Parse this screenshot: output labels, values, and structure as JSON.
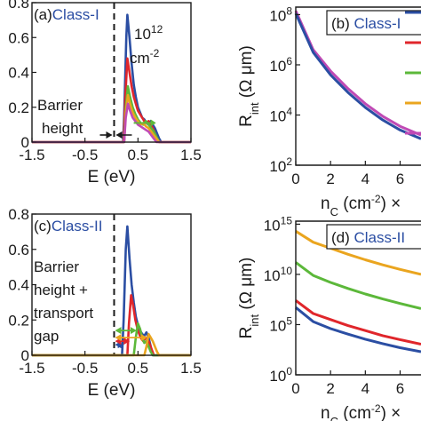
{
  "chart_data": [
    {
      "panel": "(a)",
      "class_label": "Class-I",
      "type": "line",
      "xlabel": "E (eV)",
      "ylabel": "",
      "xlim": [
        -1.5,
        1.5
      ],
      "ylim": [
        0,
        0.8
      ],
      "xticks": [
        "-1.5",
        "-0.5",
        "0.5",
        "1.5"
      ],
      "xtick_values": [
        -1.5,
        -0.5,
        0.5,
        1.5
      ],
      "yticks": [
        "0",
        "0.2",
        "0.4",
        "0.6",
        "0.8"
      ],
      "ytick_values": [
        0,
        0.2,
        0.4,
        0.6,
        0.8
      ],
      "annotation_density": "10",
      "annotation_density_exp": "12",
      "annotation_unit": "cm",
      "annotation_unit_exp": "-2",
      "barrier_line_x": 0.05,
      "barrier_label_line1": "Barrier",
      "barrier_label_line2": "height",
      "series": [
        {
          "color": "#2b4ea3",
          "x": [
            -1.5,
            0.22,
            0.24,
            0.28,
            0.3,
            0.34,
            0.38,
            0.42,
            0.46,
            0.5,
            0.54,
            0.58,
            0.62,
            0.66,
            0.7,
            0.74,
            0.78,
            0.82,
            0.86,
            0.9,
            0.94,
            1.5
          ],
          "y": [
            0,
            0,
            0.15,
            0.6,
            0.73,
            0.6,
            0.45,
            0.33,
            0.26,
            0.2,
            0.17,
            0.14,
            0.13,
            0.11,
            0.1,
            0.12,
            0.1,
            0.08,
            0.05,
            0.02,
            0,
            0
          ]
        },
        {
          "color": "#e0262b",
          "x": [
            -1.5,
            0.23,
            0.26,
            0.3,
            0.34,
            0.38,
            0.42,
            0.46,
            0.5,
            0.54,
            0.58,
            0.62,
            0.66,
            0.7,
            0.74,
            0.78,
            0.82,
            0.86,
            0.9,
            1.5
          ],
          "y": [
            0,
            0,
            0.25,
            0.48,
            0.4,
            0.32,
            0.26,
            0.22,
            0.18,
            0.16,
            0.14,
            0.12,
            0.11,
            0.12,
            0.1,
            0.08,
            0.05,
            0.02,
            0,
            0
          ]
        },
        {
          "color": "#5cb83a",
          "x": [
            -1.5,
            0.24,
            0.27,
            0.31,
            0.35,
            0.4,
            0.45,
            0.5,
            0.55,
            0.6,
            0.65,
            0.7,
            0.75,
            0.8,
            0.85,
            0.9,
            1.5
          ],
          "y": [
            0,
            0,
            0.2,
            0.32,
            0.26,
            0.2,
            0.16,
            0.13,
            0.11,
            0.1,
            0.12,
            0.1,
            0.08,
            0.06,
            0.03,
            0,
            0
          ]
        },
        {
          "color": "#eaa51f",
          "x": [
            -1.5,
            0.24,
            0.27,
            0.31,
            0.35,
            0.4,
            0.45,
            0.5,
            0.55,
            0.6,
            0.65,
            0.7,
            0.75,
            0.8,
            0.85,
            0.9,
            1.5
          ],
          "y": [
            0,
            0,
            0.17,
            0.27,
            0.22,
            0.17,
            0.14,
            0.12,
            0.1,
            0.11,
            0.09,
            0.08,
            0.06,
            0.04,
            0.02,
            0,
            0
          ]
        },
        {
          "color": "#c04ab5",
          "x": [
            -1.5,
            0.24,
            0.27,
            0.31,
            0.35,
            0.4,
            0.45,
            0.5,
            0.55,
            0.6,
            0.65,
            0.7,
            0.75,
            0.8,
            0.85,
            1.5
          ],
          "y": [
            0,
            0,
            0.14,
            0.22,
            0.18,
            0.14,
            0.12,
            0.1,
            0.09,
            0.08,
            0.07,
            0.06,
            0.04,
            0.02,
            0,
            0
          ]
        }
      ]
    },
    {
      "panel": "(b)",
      "class_label": "Class-I",
      "type": "line",
      "xlabel_base": "n",
      "xlabel_sub": "C",
      "xlabel_rest": " (cm",
      "xlabel_exp": "-2",
      "xlabel_tail": ") ×",
      "ylabel_base": "R",
      "ylabel_sub": "int",
      "ylabel_rest": " (Ω μm)",
      "log_y": true,
      "xlim": [
        0,
        7.2
      ],
      "ylim_exp": [
        2,
        8.3
      ],
      "xticks": [
        "0",
        "2",
        "4",
        "6"
      ],
      "xtick_values": [
        0,
        2,
        4,
        6
      ],
      "yticks_base": "10",
      "yticks_exp": [
        "2",
        "4",
        "6",
        "8"
      ],
      "ytick_exp_values": [
        2,
        4,
        6,
        8
      ],
      "legend_colors": [
        "#2b4ea3",
        "#e0262b",
        "#5cb83a",
        "#eaa51f",
        "#c04ab5"
      ],
      "series": [
        {
          "color": "#c04ab5",
          "x": [
            0,
            1,
            2,
            3,
            4,
            5,
            6,
            7.2
          ],
          "y_exp": [
            8.15,
            6.6,
            5.75,
            5.05,
            4.45,
            3.95,
            3.55,
            3.2
          ]
        },
        {
          "color": "#2b4ea3",
          "x": [
            0,
            1,
            2,
            3,
            4,
            5,
            6,
            7.2
          ],
          "y_exp": [
            8.05,
            6.5,
            5.6,
            4.9,
            4.3,
            3.8,
            3.4,
            3.05
          ]
        }
      ]
    },
    {
      "panel": "(c)",
      "class_label": "Class-II",
      "type": "line",
      "xlabel": "E (eV)",
      "ylabel": "",
      "xlim": [
        -1.5,
        1.5
      ],
      "ylim": [
        0,
        0.8
      ],
      "xticks": [
        "-1.5",
        "-0.5",
        "0.5",
        "1.5"
      ],
      "xtick_values": [
        -1.5,
        -0.5,
        0.5,
        1.5
      ],
      "yticks": [
        "0",
        "0.2",
        "0.4",
        "0.6",
        "0.8"
      ],
      "ytick_values": [
        0,
        0.2,
        0.4,
        0.6,
        0.8
      ],
      "barrier_line_x": 0.05,
      "barrier_label_line1": "Barrier",
      "barrier_label_line2": "height +",
      "barrier_label_line3": "transport",
      "barrier_label_line4": "gap",
      "series": [
        {
          "color": "#2b4ea3",
          "x": [
            -1.5,
            0.2,
            0.23,
            0.27,
            0.3,
            0.34,
            0.38,
            0.42,
            0.46,
            0.5,
            0.54,
            0.58,
            0.62,
            0.66,
            0.7,
            0.74,
            0.78,
            1.5
          ],
          "y": [
            0,
            0,
            0.2,
            0.6,
            0.73,
            0.55,
            0.4,
            0.3,
            0.22,
            0.17,
            0.14,
            0.12,
            0.11,
            0.13,
            0.1,
            0.05,
            0,
            0
          ]
        },
        {
          "color": "#e0262b",
          "x": [
            -1.5,
            0.3,
            0.33,
            0.37,
            0.41,
            0.45,
            0.5,
            0.55,
            0.6,
            0.65,
            0.7,
            0.75,
            0.8,
            1.5
          ],
          "y": [
            0,
            0,
            0.18,
            0.34,
            0.28,
            0.2,
            0.14,
            0.1,
            0.08,
            0.1,
            0.08,
            0.04,
            0,
            0
          ]
        },
        {
          "color": "#5cb83a",
          "x": [
            -1.5,
            0.42,
            0.46,
            0.5,
            0.54,
            0.58,
            0.62,
            0.66,
            0.7,
            0.74,
            0.78,
            1.5
          ],
          "y": [
            0,
            0,
            0.1,
            0.18,
            0.15,
            0.1,
            0.07,
            0.08,
            0.05,
            0.02,
            0,
            0
          ]
        },
        {
          "color": "#eaa51f",
          "x": [
            -1.5,
            0.62,
            0.66,
            0.7,
            0.74,
            0.78,
            0.82,
            0.86,
            0.9,
            1.5
          ],
          "y": [
            0,
            0,
            0.05,
            0.12,
            0.1,
            0.08,
            0.05,
            0.02,
            0,
            0
          ]
        }
      ]
    },
    {
      "panel": "(d)",
      "class_label": "Class-II",
      "type": "line",
      "xlabel_base": "n",
      "xlabel_sub": "C",
      "xlabel_rest": " (cm",
      "xlabel_exp": "-2",
      "xlabel_tail": ") ×",
      "ylabel_base": "R",
      "ylabel_sub": "int",
      "ylabel_rest": " (Ω μm)",
      "log_y": true,
      "xlim": [
        0,
        7.2
      ],
      "ylim_exp": [
        0,
        15.3
      ],
      "xticks": [
        "0",
        "2",
        "4",
        "6"
      ],
      "xtick_values": [
        0,
        2,
        4,
        6
      ],
      "yticks_base": "10",
      "yticks_exp": [
        "0",
        "5",
        "10",
        "15"
      ],
      "ytick_exp_values": [
        0,
        5,
        10,
        15
      ],
      "series": [
        {
          "color": "#eaa51f",
          "x": [
            0,
            1,
            2,
            3,
            4,
            5,
            6,
            7.2
          ],
          "y_exp": [
            14.3,
            13.2,
            12.6,
            12.0,
            11.45,
            10.95,
            10.5,
            10.0
          ]
        },
        {
          "color": "#5cb83a",
          "x": [
            0,
            1,
            2,
            3,
            4,
            5,
            6,
            7.2
          ],
          "y_exp": [
            11.2,
            9.9,
            9.2,
            8.6,
            8.05,
            7.55,
            7.1,
            6.6
          ]
        },
        {
          "color": "#e0262b",
          "x": [
            0,
            1,
            2,
            3,
            4,
            5,
            6,
            7.2
          ],
          "y_exp": [
            7.4,
            6.1,
            5.5,
            4.9,
            4.4,
            3.9,
            3.5,
            3.05
          ]
        },
        {
          "color": "#2b4ea3",
          "x": [
            0,
            1,
            2,
            3,
            4,
            5,
            6,
            7.2
          ],
          "y_exp": [
            6.7,
            5.3,
            4.6,
            4.05,
            3.55,
            3.1,
            2.7,
            2.3
          ]
        }
      ]
    }
  ]
}
